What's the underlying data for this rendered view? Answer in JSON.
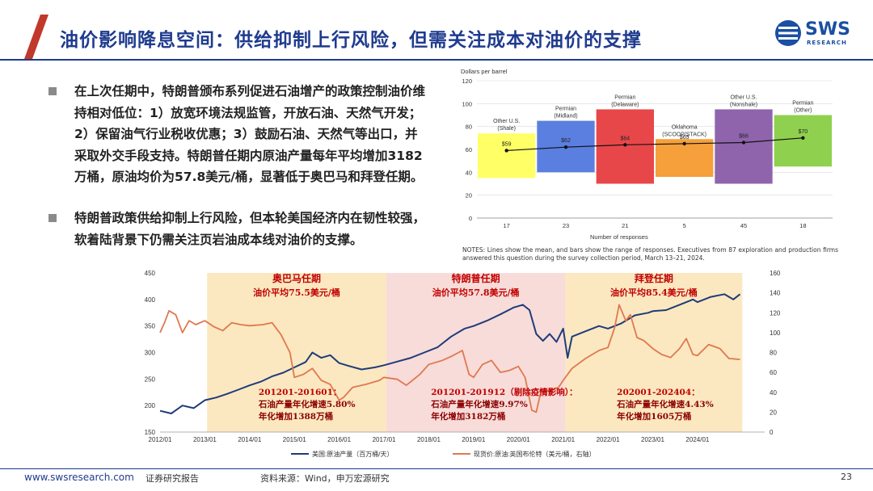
{
  "header": {
    "title": "油价影响降息空间：供给抑制上行风险，但需关注成本对油价的支撑",
    "logo_text": "SWS",
    "logo_sub": "RESEARCH"
  },
  "bullets": [
    "在上次任期中，特朗普颁布系列促进石油增产的政策控制油价维持相对低位：1）放宽环境法规监管，开放石油、天然气开发；2）保留油气行业税收优惠；3）鼓励石油、天然气等出口，并采取外交手段支持。特朗普任期内原油产量每年平均增加3182万桶，原油均价为57.8美元/桶，显著低于奥巴马和拜登任期。",
    "特朗普政策供给抑制上行风险，但本轮美国经济内在韧性较强，软着陆背景下仍需关注页岩油成本线对油价的支撑。"
  ],
  "top_chart_notes": "NOTES: Lines show the mean, and bars show the range of responses. Executives from 87 exploration and production firms answered this question during the survey collection period, March 13–21, 2024.",
  "footer": {
    "url": "www.swsresearch.com",
    "report_type": "证券研究报告",
    "source": "资料来源：Wind，申万宏源研究",
    "page": "23"
  },
  "chart_data": [
    {
      "type": "bar",
      "ylabel": "Dollars per barrel",
      "xlabel": "Number of responses",
      "ylim": [
        0,
        120
      ],
      "yticks": [
        0,
        20,
        40,
        60,
        80,
        100,
        120
      ],
      "categories": [
        "Other U.S. (Shale)",
        "Permian (Midland)",
        "Permian (Delaware)",
        "Oklahoma (SCOOP/STACK)",
        "Other U.S. (Nonshale)",
        "Permian (Other)"
      ],
      "category_label_lines": [
        [
          "Other U.S.",
          "(Shale)"
        ],
        [
          "Permian",
          "(Midland)"
        ],
        [
          "Permian",
          "(Delaware)"
        ],
        [
          "Oklahoma",
          "(SCOOP/STACK)"
        ],
        [
          "Other U.S.",
          "(Nonshale)"
        ],
        [
          "Permian",
          "(Other)"
        ]
      ],
      "responses": [
        "17",
        "23",
        "21",
        "5",
        "45",
        "18"
      ],
      "range_low": [
        35,
        40,
        30,
        36,
        30,
        45
      ],
      "range_high": [
        74,
        85,
        95,
        69,
        95,
        90
      ],
      "mean": [
        59,
        62,
        64,
        65,
        66,
        70
      ],
      "mean_labels": [
        "$59",
        "$62",
        "$64",
        "$65",
        "$66",
        "$70"
      ],
      "colors": [
        "#ffff66",
        "#5b7fe0",
        "#e8474a",
        "#f5a03a",
        "#8f64ad",
        "#8fd14f"
      ],
      "grid": true
    },
    {
      "type": "line",
      "x_ticks": [
        "2012/01",
        "2013/01",
        "2014/01",
        "2015/01",
        "2016/01",
        "2017/01",
        "2018/01",
        "2019/01",
        "2020/01",
        "2021/01",
        "2022/01",
        "2023/01",
        "2024/01"
      ],
      "y_left": {
        "range": [
          150,
          450
        ],
        "ticks": [
          150,
          200,
          250,
          300,
          350,
          400,
          450
        ]
      },
      "y_right": {
        "range": [
          0,
          160
        ],
        "ticks": [
          0,
          20,
          40,
          60,
          80,
          100,
          120,
          140,
          160
        ]
      },
      "series": [
        {
          "name": "美国:原油产量（百万桶/天）",
          "axis": "left",
          "color": "#1f3b7a",
          "points": [
            [
              2012.0,
              190
            ],
            [
              2012.25,
              185
            ],
            [
              2012.5,
              200
            ],
            [
              2012.75,
              195
            ],
            [
              2013.0,
              210
            ],
            [
              2013.25,
              215
            ],
            [
              2013.5,
              222
            ],
            [
              2013.75,
              230
            ],
            [
              2014.0,
              238
            ],
            [
              2014.25,
              245
            ],
            [
              2014.5,
              255
            ],
            [
              2014.75,
              262
            ],
            [
              2015.0,
              272
            ],
            [
              2015.25,
              282
            ],
            [
              2015.4,
              300
            ],
            [
              2015.6,
              290
            ],
            [
              2015.8,
              295
            ],
            [
              2016.0,
              280
            ],
            [
              2016.2,
              275
            ],
            [
              2016.5,
              268
            ],
            [
              2016.8,
              272
            ],
            [
              2017.0,
              276
            ],
            [
              2017.3,
              283
            ],
            [
              2017.6,
              290
            ],
            [
              2017.9,
              300
            ],
            [
              2018.2,
              310
            ],
            [
              2018.5,
              330
            ],
            [
              2018.8,
              345
            ],
            [
              2019.0,
              350
            ],
            [
              2019.3,
              360
            ],
            [
              2019.6,
              372
            ],
            [
              2019.9,
              385
            ],
            [
              2020.1,
              390
            ],
            [
              2020.25,
              380
            ],
            [
              2020.4,
              335
            ],
            [
              2020.55,
              322
            ],
            [
              2020.7,
              335
            ],
            [
              2020.85,
              320
            ],
            [
              2021.0,
              345
            ],
            [
              2021.1,
              290
            ],
            [
              2021.2,
              330
            ],
            [
              2021.5,
              340
            ],
            [
              2021.8,
              350
            ],
            [
              2022.0,
              345
            ],
            [
              2022.3,
              355
            ],
            [
              2022.6,
              370
            ],
            [
              2022.9,
              375
            ],
            [
              2023.0,
              378
            ],
            [
              2023.3,
              380
            ],
            [
              2023.6,
              390
            ],
            [
              2023.9,
              400
            ],
            [
              2024.0,
              395
            ],
            [
              2024.3,
              405
            ],
            [
              2024.6,
              410
            ],
            [
              2024.8,
              400
            ],
            [
              2024.95,
              410
            ]
          ],
          "averages": null
        },
        {
          "name": "现货价:原油:英国布伦特（美元/桶，右轴）",
          "axis": "right",
          "color": "#e07850",
          "points": [
            [
              2012.0,
              100
            ],
            [
              2012.1,
              110
            ],
            [
              2012.2,
              122
            ],
            [
              2012.35,
              118
            ],
            [
              2012.5,
              100
            ],
            [
              2012.65,
              112
            ],
            [
              2012.8,
              108
            ],
            [
              2013.0,
              112
            ],
            [
              2013.2,
              106
            ],
            [
              2013.4,
              102
            ],
            [
              2013.6,
              110
            ],
            [
              2013.8,
              108
            ],
            [
              2014.0,
              107
            ],
            [
              2014.3,
              108
            ],
            [
              2014.5,
              110
            ],
            [
              2014.7,
              98
            ],
            [
              2014.9,
              80
            ],
            [
              2015.0,
              55
            ],
            [
              2015.2,
              58
            ],
            [
              2015.4,
              64
            ],
            [
              2015.6,
              52
            ],
            [
              2015.8,
              48
            ],
            [
              2016.0,
              32
            ],
            [
              2016.1,
              35
            ],
            [
              2016.3,
              45
            ],
            [
              2016.6,
              48
            ],
            [
              2016.9,
              52
            ],
            [
              2017.0,
              55
            ],
            [
              2017.3,
              53
            ],
            [
              2017.5,
              47
            ],
            [
              2017.8,
              58
            ],
            [
              2018.0,
              68
            ],
            [
              2018.3,
              72
            ],
            [
              2018.5,
              76
            ],
            [
              2018.75,
              82
            ],
            [
              2018.9,
              58
            ],
            [
              2019.0,
              55
            ],
            [
              2019.2,
              68
            ],
            [
              2019.4,
              72
            ],
            [
              2019.6,
              60
            ],
            [
              2019.8,
              62
            ],
            [
              2020.0,
              66
            ],
            [
              2020.15,
              55
            ],
            [
              2020.3,
              22
            ],
            [
              2020.4,
              20
            ],
            [
              2020.5,
              40
            ],
            [
              2020.7,
              42
            ],
            [
              2020.9,
              45
            ],
            [
              2021.0,
              52
            ],
            [
              2021.2,
              64
            ],
            [
              2021.5,
              74
            ],
            [
              2021.8,
              82
            ],
            [
              2022.0,
              85
            ],
            [
              2022.15,
              105
            ],
            [
              2022.25,
              128
            ],
            [
              2022.4,
              112
            ],
            [
              2022.5,
              118
            ],
            [
              2022.65,
              95
            ],
            [
              2022.8,
              92
            ],
            [
              2023.0,
              84
            ],
            [
              2023.2,
              78
            ],
            [
              2023.4,
              75
            ],
            [
              2023.6,
              84
            ],
            [
              2023.75,
              94
            ],
            [
              2023.9,
              78
            ],
            [
              2024.0,
              77
            ],
            [
              2024.25,
              88
            ],
            [
              2024.5,
              84
            ],
            [
              2024.7,
              74
            ],
            [
              2024.95,
              73
            ]
          ]
        }
      ],
      "periods": [
        {
          "name": "奥巴马任期",
          "start": 2013.05,
          "end": 2017.05,
          "color": "#fbe8c0",
          "avg_label": "油价平均75.5美元/桶",
          "note_lines": [
            "201201-201601：",
            "石油产量年化增速5.80%",
            "年化增加1388万桶"
          ]
        },
        {
          "name": "特朗普任期",
          "start": 2017.05,
          "end": 2021.05,
          "color": "#f7dcd9",
          "avg_label": "油价平均57.8美元/桶",
          "note_lines": [
            "201201-201912（剔除疫情影响）：",
            "石油产量年化增速9.97%",
            "年化增加3182万桶"
          ]
        },
        {
          "name": "拜登任期",
          "start": 2021.05,
          "end": 2025.0,
          "color": "#fbe8c0",
          "avg_label": "油价平均85.4美元/桶",
          "note_lines": [
            "202001-202404：",
            "石油产量年化增速4.43%",
            "年化增加1605万桶"
          ]
        }
      ]
    }
  ]
}
